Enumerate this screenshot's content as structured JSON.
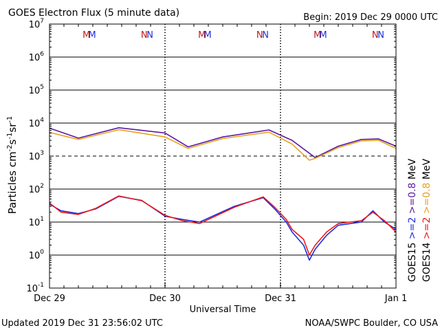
{
  "header": {
    "title": "GOES Electron Flux (5 minute data)",
    "begin": "Begin: 2019 Dec 29 0000 UTC"
  },
  "footer": {
    "updated": "Updated 2019 Dec 31 23:56:02 UTC",
    "source": "NOAA/SWPC Boulder, CO USA"
  },
  "chart_data": {
    "type": "line",
    "title": "GOES Electron Flux (5 minute data)",
    "xlabel": "Universal Time",
    "ylabel": "Particles cm-2s-1sr-1",
    "y_scale": "log",
    "ylim": [
      0.1,
      10000000
    ],
    "xlim": [
      "2019-12-29 00:00",
      "2020-01-01 00:00"
    ],
    "x_ticks": [
      "Dec 29",
      "Dec 30",
      "Dec 31",
      "Jan 1"
    ],
    "y_ticks": [
      {
        "value": 0.1,
        "mantissa": "10",
        "exp": "-1"
      },
      {
        "value": 1,
        "mantissa": "10",
        "exp": "0"
      },
      {
        "value": 10,
        "mantissa": "10",
        "exp": "1"
      },
      {
        "value": 100,
        "mantissa": "10",
        "exp": "2"
      },
      {
        "value": 1000,
        "mantissa": "10",
        "exp": "3"
      },
      {
        "value": 10000,
        "mantissa": "10",
        "exp": "4"
      },
      {
        "value": 100000,
        "mantissa": "10",
        "exp": "5"
      },
      {
        "value": 1000000,
        "mantissa": "10",
        "exp": "6"
      },
      {
        "value": 10000000,
        "mantissa": "10",
        "exp": "7"
      }
    ],
    "grid": "horizontal solid at each decade; 1000 dashed; dotted day boundaries",
    "threshold": 1000,
    "series": [
      {
        "name": "GOES15 >=0.8 MeV",
        "color": "#5a1aa0",
        "highlight": "#2020ff",
        "x": [
          0,
          0.25,
          0.6,
          1.0,
          1.2,
          1.5,
          1.9,
          2.1,
          2.3,
          2.5,
          2.7,
          2.85,
          3.0
        ],
        "y": [
          7000,
          3500,
          7200,
          5000,
          1900,
          3800,
          6200,
          3000,
          900,
          2000,
          3200,
          3300,
          2000
        ]
      },
      {
        "name": "GOES14 >=0.8 MeV",
        "color": "#e8a020",
        "highlight": "#ff2020",
        "x": [
          0,
          0.25,
          0.6,
          1.0,
          1.2,
          1.5,
          1.9,
          2.1,
          2.25,
          2.3,
          2.5,
          2.7,
          2.85,
          3.0
        ],
        "y": [
          5200,
          3200,
          6300,
          3800,
          1700,
          3400,
          5300,
          2300,
          750,
          850,
          1800,
          2900,
          3000,
          1700
        ]
      },
      {
        "name": "GOES15 >=2 MeV",
        "color": "#1c2ce0",
        "x": [
          0,
          0.1,
          0.25,
          0.4,
          0.6,
          0.8,
          1.0,
          1.15,
          1.3,
          1.6,
          1.85,
          1.95,
          2.05,
          2.1,
          2.2,
          2.25,
          2.3,
          2.4,
          2.5,
          2.7,
          2.8,
          2.9,
          3.0
        ],
        "y": [
          35,
          22,
          18,
          25,
          60,
          45,
          15,
          12,
          10,
          30,
          55,
          25,
          10,
          5,
          2,
          0.7,
          1.5,
          4,
          8,
          10,
          22,
          10,
          6
        ]
      },
      {
        "name": "GOES14 >=2 MeV",
        "color": "#f01818",
        "x": [
          0,
          0.1,
          0.25,
          0.4,
          0.6,
          0.8,
          1.0,
          1.15,
          1.3,
          1.6,
          1.85,
          1.95,
          2.05,
          2.1,
          2.2,
          2.25,
          2.3,
          2.4,
          2.5,
          2.7,
          2.8,
          2.9,
          3.0
        ],
        "y": [
          38,
          20,
          17,
          26,
          62,
          44,
          16,
          11,
          9,
          28,
          58,
          28,
          12,
          6,
          3,
          1,
          2,
          5,
          9,
          11,
          20,
          11,
          5
        ]
      }
    ],
    "legend": [
      {
        "text": "GOES15",
        "color": "#000000"
      },
      {
        "text": ">=2",
        "color": "#1c2ce0"
      },
      {
        "text": ">=0.8",
        "color": "#5a1aa0"
      },
      {
        "text": "MeV",
        "color": "#000000"
      },
      {
        "text": "GOES14",
        "color": "#000000"
      },
      {
        "text": ">=2",
        "color": "#f01818"
      },
      {
        "text": ">=0.8",
        "color": "#e8a020"
      },
      {
        "text": "MeV",
        "color": "#000000"
      }
    ],
    "annotations": [
      {
        "text": "M",
        "color": "#c01818",
        "day": 0.32
      },
      {
        "text": "M",
        "color": "#1c2ce0",
        "day": 0.37
      },
      {
        "text": "N",
        "color": "#c01818",
        "day": 0.82
      },
      {
        "text": "N",
        "color": "#1c2ce0",
        "day": 0.87
      },
      {
        "text": "M",
        "color": "#c01818",
        "day": 1.32
      },
      {
        "text": "M",
        "color": "#1c2ce0",
        "day": 1.37
      },
      {
        "text": "N",
        "color": "#c01818",
        "day": 1.82
      },
      {
        "text": "N",
        "color": "#1c2ce0",
        "day": 1.87
      },
      {
        "text": "M",
        "color": "#c01818",
        "day": 2.32
      },
      {
        "text": "M",
        "color": "#1c2ce0",
        "day": 2.37
      },
      {
        "text": "N",
        "color": "#c01818",
        "day": 2.82
      },
      {
        "text": "N",
        "color": "#1c2ce0",
        "day": 2.87
      }
    ]
  }
}
